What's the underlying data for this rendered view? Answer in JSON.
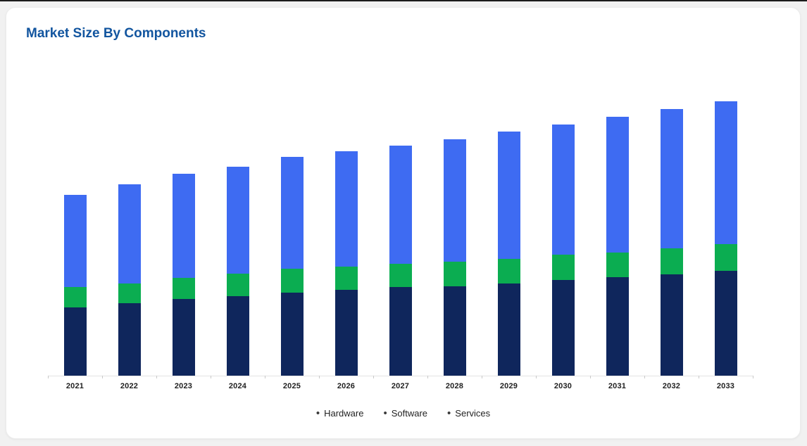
{
  "page": {
    "title": "Market Size By Components",
    "title_color": "#12559f",
    "background_color": "#f1f1f1",
    "card_background_color": "#ffffff",
    "top_edge_line_color": "#1b1b1b"
  },
  "legend": {
    "marker": "•",
    "marker_color": "#3a3a3a",
    "items": [
      "Hardware",
      "Software",
      "Services"
    ]
  },
  "axis": {
    "line_color": "#e3e3e3",
    "tick_color": "#c9c9c9",
    "label_color": "#1f1f1f"
  },
  "chart_data": {
    "type": "bar",
    "stacked": true,
    "title": "Market Size By Components",
    "categories": [
      "2021",
      "2022",
      "2023",
      "2024",
      "2025",
      "2026",
      "2027",
      "2028",
      "2029",
      "2030",
      "2031",
      "2032",
      "2033"
    ],
    "series": [
      {
        "name": "Hardware",
        "color": "#0f265c",
        "values": [
          97,
          103,
          109,
          113,
          118,
          122,
          126,
          127,
          131,
          136,
          140,
          144,
          149
        ]
      },
      {
        "name": "Software",
        "color": "#0bad51",
        "values": [
          29,
          28,
          30,
          32,
          34,
          33,
          33,
          35,
          35,
          36,
          35,
          37,
          38
        ]
      },
      {
        "name": "Services",
        "color": "#3e6bf2",
        "values": [
          131,
          141,
          148,
          152,
          159,
          164,
          168,
          174,
          181,
          185,
          193,
          198,
          203
        ]
      }
    ],
    "stack_totals": [
      257,
      272,
      287,
      297,
      311,
      319,
      327,
      336,
      347,
      357,
      368,
      379,
      390
    ],
    "value_scale": "relative-units (no value axis labels shown)",
    "xlabel": "",
    "ylabel": "",
    "grid": false,
    "value_axis_labels": false,
    "legend_position": "bottom"
  }
}
